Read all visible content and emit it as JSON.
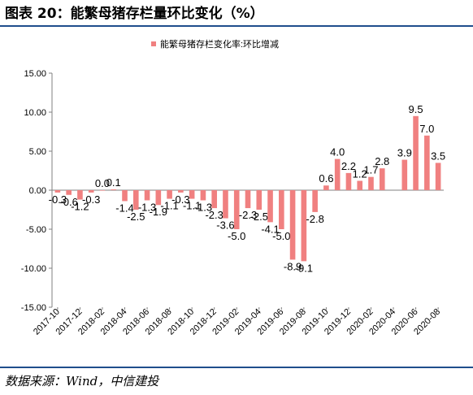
{
  "figure": {
    "title": "图表 20：能繁母猪存栏量环比变化（%）",
    "source": "数据来源：Wind，中信建投"
  },
  "colors": {
    "bar": "#f08080",
    "rule": "#1f4e8c",
    "axis": "#808080"
  },
  "chart_data": {
    "type": "bar",
    "title": "",
    "xlabel": "",
    "ylabel": "",
    "ylim": [
      -15,
      15
    ],
    "yticks": [
      "15.00",
      "10.00",
      "5.00",
      "0.00",
      "-5.00",
      "-10.00",
      "-15.00"
    ],
    "ytick_values": [
      15,
      10,
      5,
      0,
      -5,
      -10,
      -15
    ],
    "grid": false,
    "legend_position": "top",
    "categories": [
      "2017-10",
      "2017-11",
      "2017-12",
      "2018-01",
      "2018-02",
      "2018-03",
      "2018-04",
      "2018-05",
      "2018-06",
      "2018-07",
      "2018-08",
      "2018-09",
      "2018-10",
      "2018-11",
      "2018-12",
      "2019-01",
      "2019-02",
      "2019-03",
      "2019-04",
      "2019-05",
      "2019-06",
      "2019-07",
      "2019-08",
      "2019-09",
      "2019-10",
      "2019-11",
      "2019-12",
      "2020-01",
      "2020-02",
      "2020-03",
      "2020-04",
      "2020-05",
      "2020-06",
      "2020-07",
      "2020-08"
    ],
    "xtick_labels": [
      "2017-10",
      "2017-12",
      "2018-02",
      "2018-04",
      "2018-06",
      "2018-08",
      "2018-10",
      "2018-12",
      "2019-02",
      "2019-04",
      "2019-06",
      "2019-08",
      "2019-10",
      "2019-12",
      "2020-02",
      "2020-04",
      "2020-06",
      "2020-08"
    ],
    "series": [
      {
        "name": "能繁母猪存栏变化率:环比增减",
        "values": [
          -0.3,
          -0.6,
          -1.2,
          -0.3,
          0.0,
          0.1,
          -1.4,
          -2.5,
          -1.3,
          -1.9,
          -1.1,
          -0.3,
          -1.1,
          -1.3,
          -2.3,
          -3.6,
          -5.0,
          -2.3,
          -2.5,
          -4.1,
          -5.0,
          -8.9,
          -9.1,
          -2.8,
          0.6,
          4.0,
          2.2,
          1.2,
          1.7,
          2.8,
          null,
          3.9,
          9.5,
          7.0,
          3.5
        ],
        "labels": [
          "-0.3",
          "-0.6",
          "-1.2",
          "-0.3",
          "0.0",
          "0.1",
          "-1.4",
          "-2.5",
          "-1.3",
          "-1.9",
          "-1.1",
          "-0.3",
          "-1.1",
          "-1.3",
          "-2.3",
          "-3.6",
          "-5.0",
          "-2.3",
          "-2.5",
          "-4.1",
          "-5.0",
          "-8.9",
          "-9.1",
          "-2.8",
          "0.6",
          "4.0",
          "2.2",
          "1.2",
          "1.7",
          "2.8",
          "",
          "3.9",
          "9.5",
          "7.0",
          "3.5"
        ]
      }
    ]
  }
}
